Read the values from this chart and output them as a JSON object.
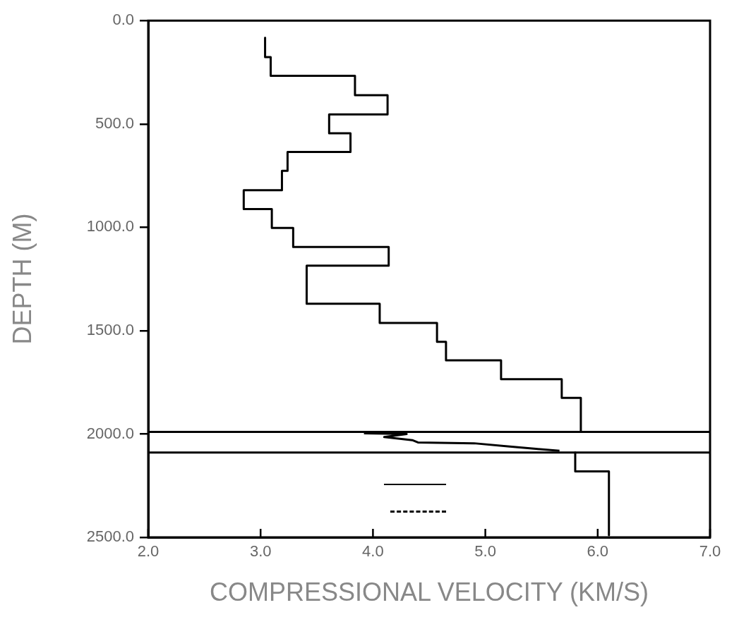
{
  "chart_data": {
    "type": "line",
    "xlabel": "COMPRESSIONAL VELOCITY (KM/S)",
    "ylabel": "DEPTH (M)",
    "xlim": [
      2,
      7
    ],
    "xticks": [
      {
        "value": 2,
        "label": "2.0"
      },
      {
        "value": 3,
        "label": "3.0"
      },
      {
        "value": 4,
        "label": "4.0"
      },
      {
        "value": 5,
        "label": "5.0"
      },
      {
        "value": 6,
        "label": "6.0"
      },
      {
        "value": 7,
        "label": "7.0"
      }
    ],
    "ylim": [
      2500,
      0
    ],
    "yticks": [
      {
        "value": 0,
        "label": "0.0"
      },
      {
        "value": 500,
        "label": "500.0"
      },
      {
        "value": 1000,
        "label": "1000.0"
      },
      {
        "value": 1500,
        "label": "1500.0"
      },
      {
        "value": 2000,
        "label": "2000.0"
      },
      {
        "value": 2500,
        "label": "2500.0"
      }
    ],
    "grid": false,
    "series": [
      {
        "color": "#000000",
        "x": [
          3.04,
          3.04,
          3.09,
          3.09,
          3.84,
          3.84,
          4.13,
          4.13,
          3.61,
          3.61,
          3.8,
          3.8,
          3.24,
          3.24,
          3.19,
          3.19,
          2.85,
          2.85,
          3.1,
          3.1,
          3.29,
          3.29,
          4.14,
          4.14,
          3.41,
          3.41,
          4.06,
          4.06,
          4.57,
          4.57,
          4.65,
          4.65,
          5.14,
          5.14,
          5.68,
          5.68,
          5.85,
          5.85,
          null,
          5.8,
          5.8,
          6.1,
          6.1
        ],
        "values": [
          83,
          177,
          177,
          267,
          267,
          361,
          361,
          454,
          454,
          545,
          545,
          636,
          636,
          727,
          727,
          821,
          821,
          912,
          912,
          1003,
          1003,
          1095,
          1095,
          1186,
          1186,
          1370,
          1370,
          1463,
          1463,
          1554,
          1554,
          1644,
          1644,
          1735,
          1735,
          1825,
          1825,
          1990,
          null,
          2090,
          2181,
          2181,
          2490
        ]
      },
      {
        "color": "#000000",
        "x": [
          3.92,
          4.3,
          4.1,
          4.35,
          4.4,
          4.9,
          5.2,
          5.45,
          5.66
        ],
        "values": [
          1997,
          2000,
          2015,
          2030,
          2041,
          2045,
          2060,
          2072,
          2081
        ]
      }
    ],
    "ref_lines": [
      {
        "axis": "y",
        "value": 1990
      },
      {
        "axis": "y",
        "value": 2090
      }
    ]
  }
}
